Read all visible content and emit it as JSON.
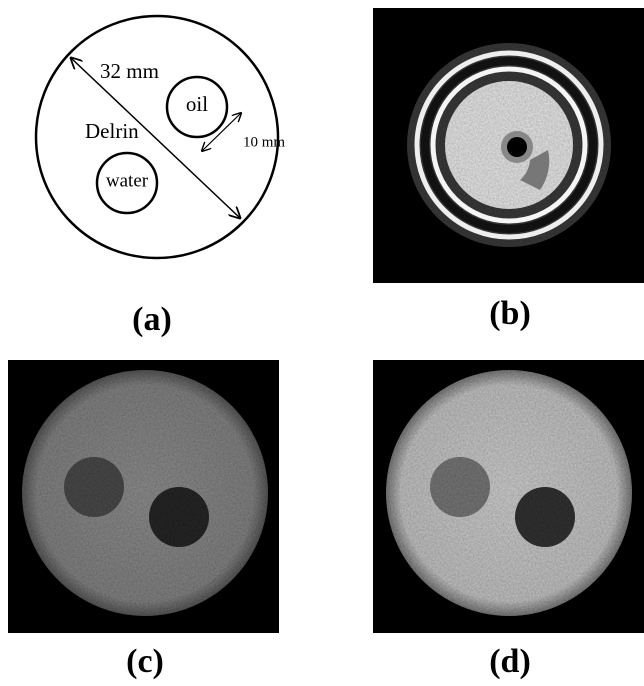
{
  "diagram": {
    "diameter_label": "32 mm",
    "hole_diameter_label": "10 mm",
    "material": "Delrin",
    "inserts": [
      "oil",
      "water"
    ]
  },
  "panels": {
    "labels": [
      "(a)",
      "(b)",
      "(c)",
      "(d)"
    ]
  }
}
